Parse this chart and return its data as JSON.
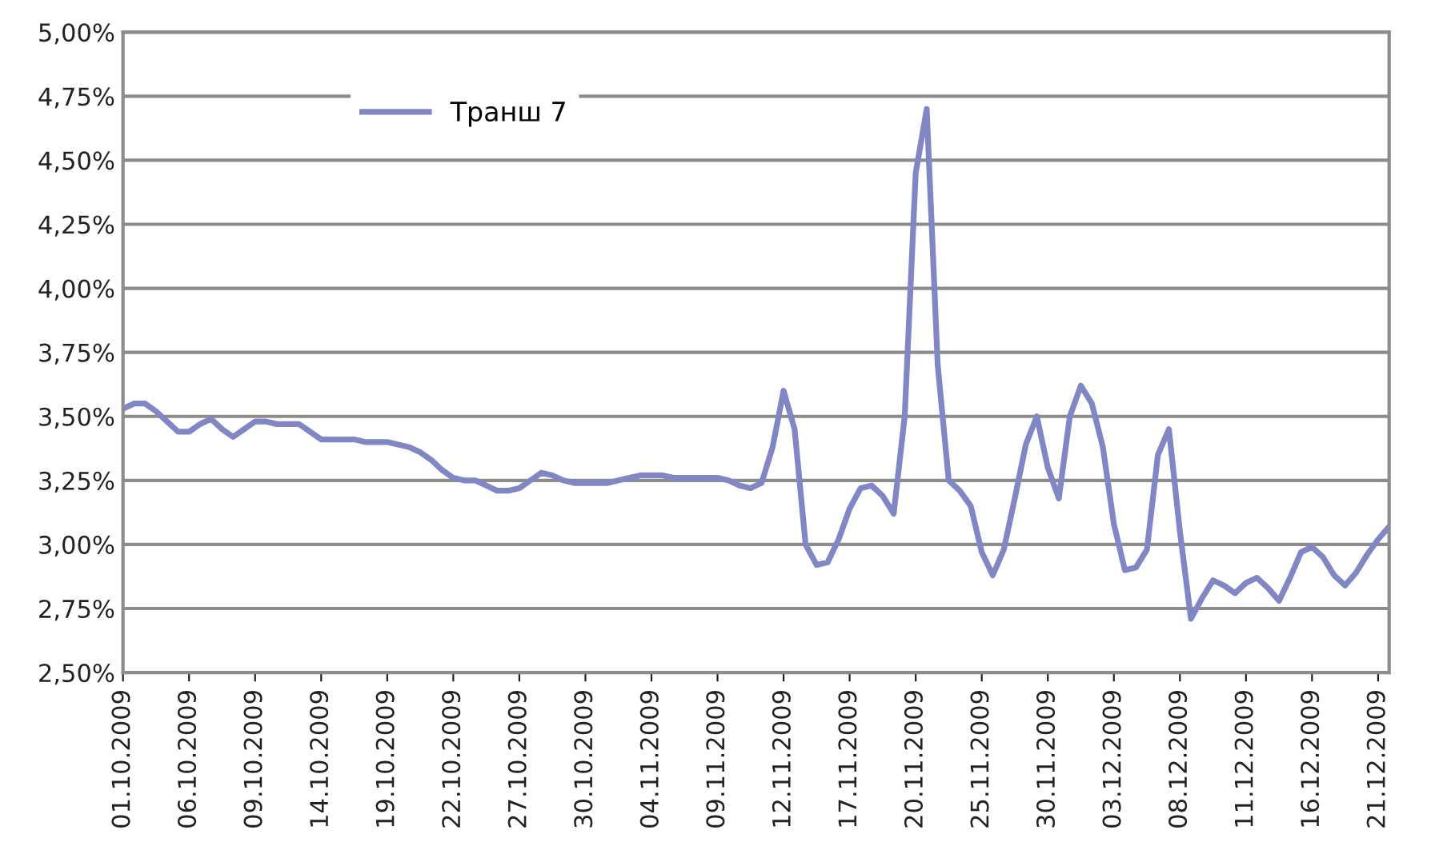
{
  "chart_data": {
    "type": "line",
    "categories": [
      "01.10.2009",
      null,
      null,
      null,
      null,
      null,
      "06.10.2009",
      null,
      null,
      null,
      null,
      null,
      "09.10.2009",
      null,
      null,
      null,
      null,
      null,
      "14.10.2009",
      null,
      null,
      null,
      null,
      null,
      "19.10.2009",
      null,
      null,
      null,
      null,
      null,
      "22.10.2009",
      null,
      null,
      null,
      null,
      null,
      "27.10.2009",
      null,
      null,
      null,
      null,
      null,
      "30.10.2009",
      null,
      null,
      null,
      null,
      null,
      "04.11.2009",
      null,
      null,
      null,
      null,
      null,
      "09.11.2009",
      null,
      null,
      null,
      null,
      null,
      "12.11.2009",
      null,
      null,
      null,
      null,
      null,
      "17.11.2009",
      null,
      null,
      null,
      null,
      null,
      "20.11.2009",
      null,
      null,
      null,
      null,
      null,
      "25.11.2009",
      null,
      null,
      null,
      null,
      null,
      "30.11.2009",
      null,
      null,
      null,
      null,
      null,
      "03.12.2009",
      null,
      null,
      null,
      null,
      null,
      "08.12.2009",
      null,
      null,
      null,
      null,
      null,
      "11.12.2009",
      null,
      null,
      null,
      null,
      null,
      "16.12.2009",
      null,
      null,
      null,
      null,
      null,
      "21.12.2009",
      null
    ],
    "series": [
      {
        "name": "Транш 7",
        "color": "#8087c4",
        "values": [
          3.53,
          3.55,
          3.55,
          3.52,
          3.48,
          3.44,
          3.44,
          3.47,
          3.49,
          3.45,
          3.42,
          3.45,
          3.48,
          3.48,
          3.47,
          3.47,
          3.47,
          3.44,
          3.41,
          3.41,
          3.41,
          3.41,
          3.4,
          3.4,
          3.4,
          3.39,
          3.38,
          3.36,
          3.33,
          3.29,
          3.26,
          3.25,
          3.25,
          3.23,
          3.21,
          3.21,
          3.22,
          3.25,
          3.28,
          3.27,
          3.25,
          3.24,
          3.24,
          3.24,
          3.24,
          3.25,
          3.26,
          3.27,
          3.27,
          3.27,
          3.26,
          3.26,
          3.26,
          3.26,
          3.26,
          3.25,
          3.23,
          3.22,
          3.24,
          3.38,
          3.6,
          3.45,
          3.0,
          2.92,
          2.93,
          3.02,
          3.14,
          3.22,
          3.23,
          3.19,
          3.12,
          3.5,
          4.45,
          4.7,
          3.7,
          3.25,
          3.21,
          3.15,
          2.97,
          2.88,
          2.98,
          3.18,
          3.39,
          3.5,
          3.3,
          3.18,
          3.5,
          3.62,
          3.55,
          3.38,
          3.08,
          2.9,
          2.91,
          2.98,
          3.35,
          3.45,
          3.05,
          2.71,
          2.79,
          2.86,
          2.84,
          2.81,
          2.85,
          2.87,
          2.83,
          2.78,
          2.87,
          2.97,
          2.99,
          2.95,
          2.88,
          2.84,
          2.89,
          2.96,
          3.02,
          3.07
        ]
      }
    ],
    "ylim": [
      2.5,
      5.0
    ],
    "yticks": [
      {
        "value": 2.5,
        "label": "2,50%"
      },
      {
        "value": 2.75,
        "label": "2,75%"
      },
      {
        "value": 3.0,
        "label": "3,00%"
      },
      {
        "value": 3.25,
        "label": "3,25%"
      },
      {
        "value": 3.5,
        "label": "3,50%"
      },
      {
        "value": 3.75,
        "label": "3,75%"
      },
      {
        "value": 4.0,
        "label": "4,00%"
      },
      {
        "value": 4.25,
        "label": "4,25%"
      },
      {
        "value": 4.5,
        "label": "4,50%"
      },
      {
        "value": 4.75,
        "label": "4,75%"
      },
      {
        "value": 5.0,
        "label": "5,00%"
      }
    ],
    "grid": "y",
    "legend": "top left",
    "marker": "none",
    "line_style": "solid"
  }
}
